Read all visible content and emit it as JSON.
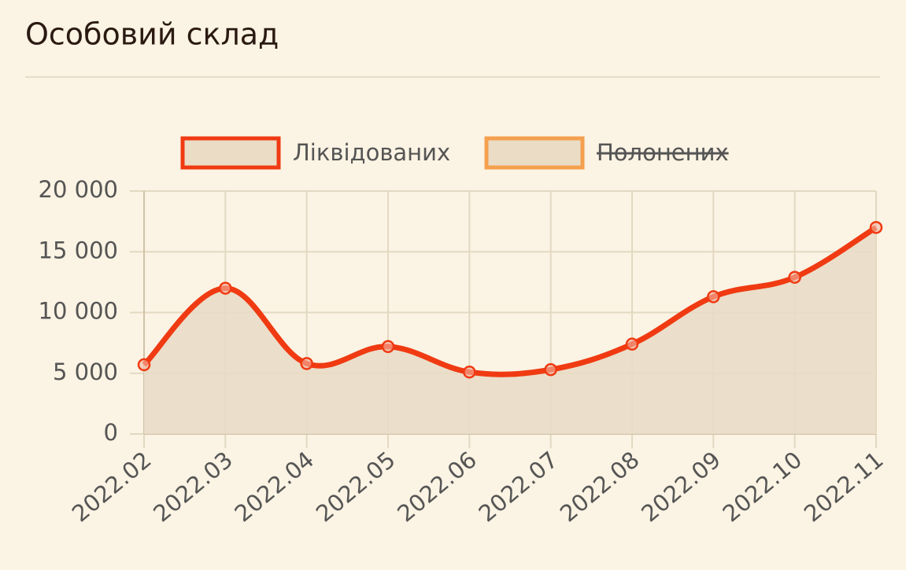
{
  "chart_data": {
    "type": "line",
    "title": "Особовий склад",
    "categories": [
      "2022.02",
      "2022.03",
      "2022.04",
      "2022.05",
      "2022.06",
      "2022.07",
      "2022.08",
      "2022.09",
      "2022.10",
      "2022.11"
    ],
    "series": [
      {
        "name": "Ліквідованих",
        "color": "#f03a12",
        "values": [
          5700,
          12000,
          5800,
          7200,
          5100,
          5300,
          7400,
          11300,
          12900,
          17000
        ]
      },
      {
        "name": "Полонених",
        "color": "#f4a04e",
        "hidden": true
      }
    ],
    "ylim": [
      0,
      20000
    ],
    "yticks": [
      0,
      {
        "value": 5000,
        "label": "5 000"
      },
      {
        "value": 10000,
        "label": "10 000"
      },
      {
        "value": 15000,
        "label": "15 000"
      },
      {
        "value": 20000,
        "label": "20 000"
      }
    ],
    "grid": true,
    "legend": "top"
  }
}
